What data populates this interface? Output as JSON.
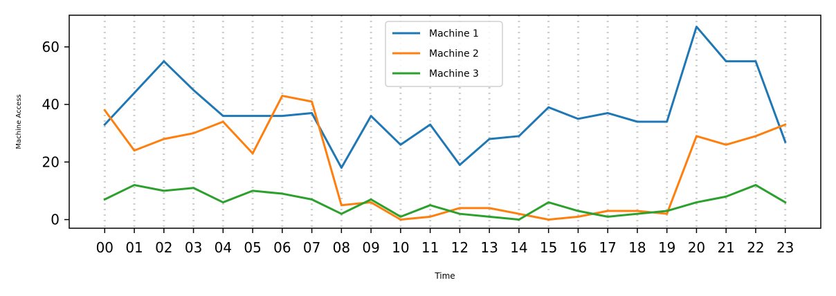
{
  "chart_data": {
    "type": "line",
    "title": "",
    "xlabel": "Time",
    "ylabel": "Machine Access",
    "x": [
      "00",
      "01",
      "02",
      "03",
      "04",
      "05",
      "06",
      "07",
      "08",
      "09",
      "10",
      "11",
      "12",
      "13",
      "14",
      "15",
      "16",
      "17",
      "18",
      "19",
      "20",
      "21",
      "22",
      "23"
    ],
    "xlim": [
      -1.2,
      24.2
    ],
    "ylim": [
      -3,
      71
    ],
    "yticks": [
      0,
      20,
      40,
      60
    ],
    "grid": "vertical dotted",
    "legend_position": "top-center",
    "series": [
      {
        "name": "Machine 1",
        "color": "#1f77b4",
        "values": [
          33,
          44,
          55,
          45,
          36,
          36,
          36,
          37,
          18,
          36,
          26,
          33,
          19,
          28,
          29,
          39,
          35,
          37,
          34,
          34,
          67,
          55,
          55,
          27
        ]
      },
      {
        "name": "Machine 2",
        "color": "#ff7f0e",
        "values": [
          38,
          24,
          28,
          30,
          34,
          23,
          43,
          41,
          5,
          6,
          0,
          1,
          4,
          4,
          2,
          0,
          1,
          3,
          3,
          2,
          29,
          26,
          29,
          33
        ]
      },
      {
        "name": "Machine 3",
        "color": "#2ca02c",
        "values": [
          7,
          12,
          10,
          11,
          6,
          10,
          9,
          7,
          2,
          7,
          1,
          5,
          2,
          1,
          0,
          6,
          3,
          1,
          2,
          3,
          6,
          8,
          12,
          6
        ]
      }
    ]
  }
}
